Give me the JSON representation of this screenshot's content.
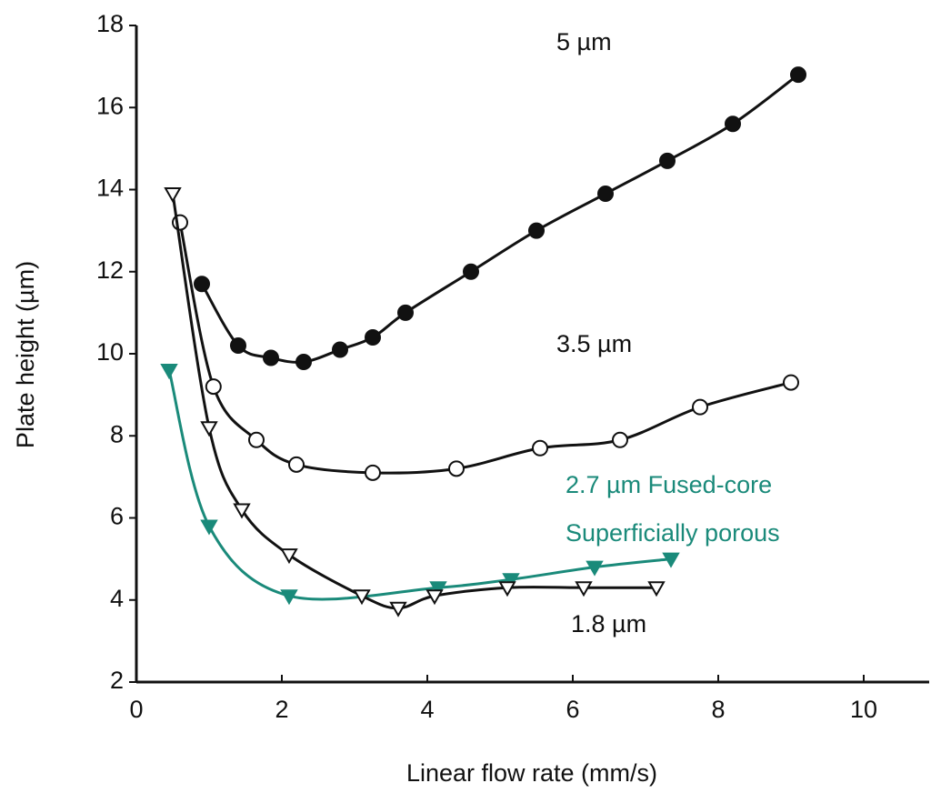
{
  "chart_data": {
    "type": "scatter-line",
    "xlabel": "Linear flow rate (mm/s)",
    "ylabel": "Plate height (µm)",
    "xlim": [
      0,
      10.9
    ],
    "ylim": [
      2,
      18
    ],
    "xticks": [
      0,
      2,
      4,
      6,
      8,
      10
    ],
    "yticks": [
      2,
      4,
      6,
      8,
      10,
      12,
      14,
      16,
      18
    ],
    "series": [
      {
        "color": "#111111",
        "marker": "circle-filled",
        "x": [
          0.9,
          1.4,
          1.85,
          2.3,
          2.8,
          3.25,
          3.7,
          4.6,
          5.5,
          6.45,
          7.3,
          8.2,
          9.1
        ],
        "values": [
          11.7,
          10.2,
          9.9,
          9.8,
          10.1,
          10.4,
          11.0,
          12.0,
          13.0,
          13.9,
          14.7,
          15.6,
          16.8
        ]
      },
      {
        "color": "#111111",
        "marker": "circle-open",
        "x": [
          0.6,
          1.06,
          1.65,
          2.2,
          3.25,
          4.4,
          5.55,
          6.65,
          7.75,
          9.0
        ],
        "values": [
          13.2,
          9.2,
          7.9,
          7.3,
          7.1,
          7.2,
          7.7,
          7.9,
          8.7,
          9.3
        ]
      },
      {
        "color": "#1a8a7a",
        "marker": "triangle-filled",
        "x": [
          0.45,
          1.0,
          2.1,
          4.15,
          5.15,
          6.3,
          7.35
        ],
        "values": [
          9.6,
          5.8,
          4.1,
          4.3,
          4.5,
          4.8,
          5.0
        ]
      },
      {
        "color": "#111111",
        "marker": "triangle-open",
        "x": [
          0.5,
          1.0,
          1.45,
          2.1,
          3.1,
          3.6,
          4.1,
          5.1,
          6.15,
          7.15
        ],
        "values": [
          13.9,
          8.2,
          6.2,
          5.1,
          4.1,
          3.8,
          4.1,
          4.3,
          4.3,
          4.3
        ]
      }
    ],
    "annotations": [
      "5 µm",
      "3.5 µm",
      "2.7 µm Fused-core",
      "Superficially porous",
      "1.8 µm"
    ]
  }
}
